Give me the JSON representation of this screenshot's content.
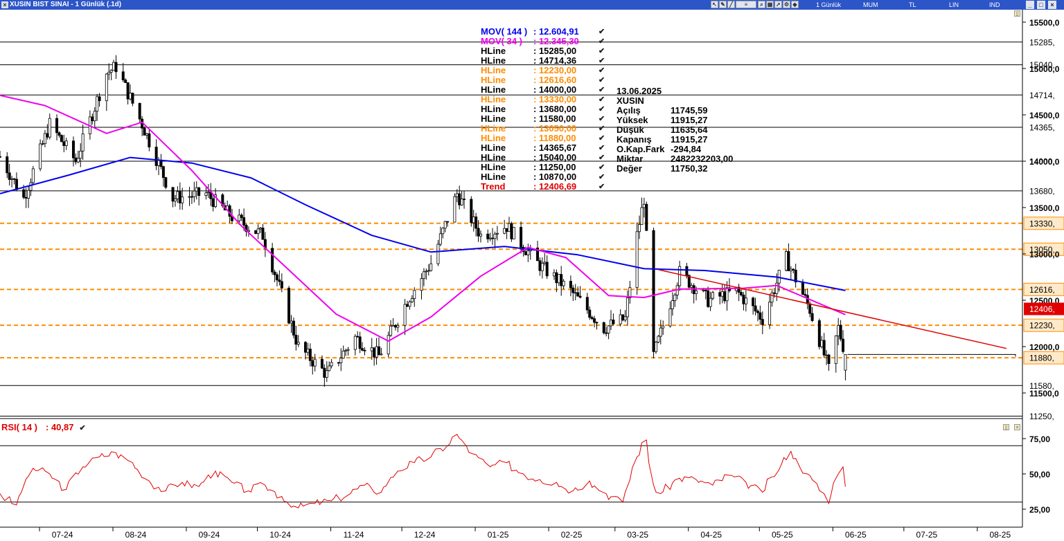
{
  "window": {
    "title": "XUSIN BIST SINAI - 1 Günlük (.1d)",
    "toolbar_menus": [
      "1 Günlük",
      "MUM",
      "TL",
      "LIN",
      "IND"
    ],
    "window_buttons": [
      "_",
      "□",
      "×"
    ],
    "icons": [
      "cursor-icon",
      "pen-icon",
      "line-icon",
      "text-icon",
      "zoom-icon",
      "grid-icon",
      "arrow-icon",
      "settings-icon"
    ]
  },
  "legend": {
    "rows": [
      {
        "name": "MOV( 144 )",
        "value": ": 12.604,91",
        "color": "#0000ee"
      },
      {
        "name": "MOV( 34 )",
        "value": ": 12.345,30",
        "color": "#ee00ee"
      },
      {
        "name": "HLine",
        "value": ": 15285,00",
        "color": "#000000"
      },
      {
        "name": "HLine",
        "value": ": 14714,36",
        "color": "#000000"
      },
      {
        "name": "HLine",
        "value": ": 12230,00",
        "color": "#ff8c00"
      },
      {
        "name": "HLine",
        "value": ": 12616,60",
        "color": "#ff8c00"
      },
      {
        "name": "HLine",
        "value": ": 14000,00",
        "color": "#000000"
      },
      {
        "name": "HLine",
        "value": ": 13330,00",
        "color": "#ff8c00"
      },
      {
        "name": "HLine",
        "value": ": 13680,00",
        "color": "#000000"
      },
      {
        "name": "HLine",
        "value": ": 11580,00",
        "color": "#000000"
      },
      {
        "name": "HLine",
        "value": ": 13050,00",
        "color": "#ff8c00"
      },
      {
        "name": "HLine",
        "value": ": 11880,00",
        "color": "#ff8c00"
      },
      {
        "name": "HLine",
        "value": ": 14365,67",
        "color": "#000000"
      },
      {
        "name": "HLine",
        "value": ": 15040,00",
        "color": "#000000"
      },
      {
        "name": "HLine",
        "value": ": 11250,00",
        "color": "#000000"
      },
      {
        "name": "HLine",
        "value": ": 10870,00",
        "color": "#000000"
      },
      {
        "name": "Trend",
        "value": ": 12406,69",
        "color": "#e00000"
      }
    ],
    "check_glyph": "✔"
  },
  "info_box": {
    "date": "13.06.2025",
    "symbol": "XUSIN",
    "rows": [
      {
        "key": "Açılış",
        "value": "11745,59"
      },
      {
        "key": "Yüksek",
        "value": "11915,27"
      },
      {
        "key": "Düşük",
        "value": "11635,64"
      },
      {
        "key": "Kapanış",
        "value": "11915,27"
      },
      {
        "key": "O.Kap.Fark",
        "value": "-294,84"
      },
      {
        "key": "Miktar",
        "value": "2482232203,00"
      },
      {
        "key": "Değer",
        "value": "11750,32"
      }
    ]
  },
  "rsi_panel": {
    "label": "RSI( 14 )",
    "value": ": 40,87",
    "check_glyph": "✔"
  },
  "chart_data": [
    {
      "type": "candlestick",
      "symbol": "XUSIN",
      "y_axis": {
        "min": 11300,
        "max": 15600,
        "ticks": [
          11500,
          12000,
          12500,
          13000,
          13500,
          14000,
          14500,
          15000,
          15500
        ],
        "tick_labels": [
          "11500,0",
          "12000,0",
          "12500,0",
          "13000,0",
          "13500,0",
          "14000,0",
          "14500,0",
          "15000,0",
          "15500,0"
        ]
      },
      "x_axis": {
        "labels": [
          "07-24",
          "08-24",
          "09-24",
          "10-24",
          "11-24",
          "12-24",
          "01-25",
          "02-25",
          "03-25",
          "04-25",
          "05-25",
          "06-25",
          "07-25",
          "08-25"
        ]
      },
      "ohlc_waypoints": [
        {
          "date": "2024-06-21",
          "close": 14050
        },
        {
          "date": "2024-07-01",
          "close": 13600
        },
        {
          "date": "2024-07-12",
          "close": 14400
        },
        {
          "date": "2024-07-23",
          "close": 14000
        },
        {
          "date": "2024-08-05",
          "close": 14950
        },
        {
          "date": "2024-08-09",
          "close": 15020
        },
        {
          "date": "2024-08-20",
          "close": 14400
        },
        {
          "date": "2024-09-02",
          "close": 13600
        },
        {
          "date": "2024-09-16",
          "close": 13650
        },
        {
          "date": "2024-09-27",
          "close": 13400
        },
        {
          "date": "2024-10-10",
          "close": 13200
        },
        {
          "date": "2024-10-25",
          "close": 12000
        },
        {
          "date": "2024-11-06",
          "close": 11700
        },
        {
          "date": "2024-11-18",
          "close": 12100
        },
        {
          "date": "2024-11-28",
          "close": 11900
        },
        {
          "date": "2024-12-10",
          "close": 12500
        },
        {
          "date": "2024-12-20",
          "close": 12900
        },
        {
          "date": "2024-12-31",
          "close": 13650
        },
        {
          "date": "2025-01-10",
          "close": 13200
        },
        {
          "date": "2025-01-21",
          "close": 13300
        },
        {
          "date": "2025-02-03",
          "close": 12900
        },
        {
          "date": "2025-02-17",
          "close": 12600
        },
        {
          "date": "2025-03-03",
          "close": 12200
        },
        {
          "date": "2025-03-12",
          "close": 12300
        },
        {
          "date": "2025-03-17",
          "close": 13200
        },
        {
          "date": "2025-03-20",
          "close": 13600
        },
        {
          "date": "2025-03-24",
          "close": 11900
        },
        {
          "date": "2025-04-04",
          "close": 12800
        },
        {
          "date": "2025-04-16",
          "close": 12500
        },
        {
          "date": "2025-04-28",
          "close": 12600
        },
        {
          "date": "2025-05-09",
          "close": 12300
        },
        {
          "date": "2025-05-19",
          "close": 12950
        },
        {
          "date": "2025-05-29",
          "close": 12400
        },
        {
          "date": "2025-06-06",
          "close": 11750
        },
        {
          "date": "2025-06-10",
          "close": 12200
        },
        {
          "date": "2025-06-13",
          "close": 11915
        }
      ],
      "last_bar": {
        "date": "2025-06-13",
        "open": 11745.59,
        "high": 11915.27,
        "low": 11635.64,
        "close": 11915.27
      },
      "series": [
        {
          "name": "MOV( 144 )",
          "color": "#0000ee",
          "last": 12604.91,
          "points": [
            {
              "date": "2024-06-21",
              "value": 13650
            },
            {
              "date": "2024-07-20",
              "value": 13850
            },
            {
              "date": "2024-08-15",
              "value": 14040
            },
            {
              "date": "2024-09-10",
              "value": 13980
            },
            {
              "date": "2024-10-05",
              "value": 13820
            },
            {
              "date": "2024-10-28",
              "value": 13530
            },
            {
              "date": "2024-11-25",
              "value": 13200
            },
            {
              "date": "2024-12-20",
              "value": 13020
            },
            {
              "date": "2025-01-20",
              "value": 13080
            },
            {
              "date": "2025-02-20",
              "value": 12990
            },
            {
              "date": "2025-03-20",
              "value": 12840
            },
            {
              "date": "2025-04-15",
              "value": 12820
            },
            {
              "date": "2025-05-15",
              "value": 12750
            },
            {
              "date": "2025-06-13",
              "value": 12605
            }
          ]
        },
        {
          "name": "MOV( 34 )",
          "color": "#ee00ee",
          "last": 12345.3,
          "points": [
            {
              "date": "2024-06-21",
              "value": 14710
            },
            {
              "date": "2024-07-10",
              "value": 14600
            },
            {
              "date": "2024-08-05",
              "value": 14300
            },
            {
              "date": "2024-08-20",
              "value": 14420
            },
            {
              "date": "2024-09-10",
              "value": 13900
            },
            {
              "date": "2024-10-01",
              "value": 13300
            },
            {
              "date": "2024-10-20",
              "value": 12850
            },
            {
              "date": "2024-11-10",
              "value": 12350
            },
            {
              "date": "2024-12-02",
              "value": 12060
            },
            {
              "date": "2024-12-20",
              "value": 12320
            },
            {
              "date": "2025-01-10",
              "value": 12760
            },
            {
              "date": "2025-01-30",
              "value": 13070
            },
            {
              "date": "2025-02-15",
              "value": 12960
            },
            {
              "date": "2025-03-05",
              "value": 12550
            },
            {
              "date": "2025-03-20",
              "value": 12530
            },
            {
              "date": "2025-04-04",
              "value": 12620
            },
            {
              "date": "2025-05-01",
              "value": 12630
            },
            {
              "date": "2025-05-15",
              "value": 12660
            },
            {
              "date": "2025-06-13",
              "value": 12345
            }
          ]
        }
      ],
      "hlines": [
        {
          "value": 15285,
          "label": "15285,",
          "style": "solid",
          "color": "#000000"
        },
        {
          "value": 15040,
          "label": "15040,",
          "style": "solid",
          "color": "#000000"
        },
        {
          "value": 14714.36,
          "label": "14714,",
          "style": "solid",
          "color": "#000000"
        },
        {
          "value": 14365.67,
          "label": "14365,",
          "style": "solid",
          "color": "#000000"
        },
        {
          "value": 14000,
          "label": "14000,",
          "style": "solid",
          "color": "#000000"
        },
        {
          "value": 13680,
          "label": "13680,",
          "style": "solid",
          "color": "#000000"
        },
        {
          "value": 13330,
          "label": "13330,",
          "style": "dashed",
          "color": "#ff8c00"
        },
        {
          "value": 13050,
          "label": "13050,",
          "style": "dashed",
          "color": "#ff8c00"
        },
        {
          "value": 12616.6,
          "label": "12616,",
          "style": "dashed",
          "color": "#ff8c00"
        },
        {
          "value": 12230,
          "label": "12230,",
          "style": "dashed",
          "color": "#ff8c00"
        },
        {
          "value": 11880,
          "label": "11880,",
          "style": "dashed",
          "color": "#ff8c00"
        },
        {
          "value": 11580,
          "label": "11580,",
          "style": "solid",
          "color": "#000000"
        },
        {
          "value": 11250,
          "label": "11250,",
          "style": "solid",
          "color": "#000000"
        }
      ],
      "trend": {
        "name": "Trend",
        "color": "#e00000",
        "label": "12406,",
        "value": 12406.69,
        "points": [
          {
            "date": "2025-03-26",
            "value": 12830
          },
          {
            "date": "2025-08-20",
            "value": 11980
          }
        ]
      },
      "last_price_marker": {
        "value": 11915.27
      }
    },
    {
      "type": "line",
      "name": "RSI( 14 )",
      "color": "#e00000",
      "last": 40.87,
      "y_axis": {
        "min": 17,
        "max": 82,
        "ticks": [
          25,
          50,
          75
        ],
        "tick_labels": [
          "25,00",
          "50,00",
          "75,00"
        ]
      },
      "bands": [
        70,
        30
      ],
      "points": [
        {
          "date": "2024-06-21",
          "value": 36
        },
        {
          "date": "2024-06-28",
          "value": 28
        },
        {
          "date": "2024-07-05",
          "value": 54
        },
        {
          "date": "2024-07-12",
          "value": 50
        },
        {
          "date": "2024-07-19",
          "value": 39
        },
        {
          "date": "2024-07-26",
          "value": 55
        },
        {
          "date": "2024-08-02",
          "value": 62
        },
        {
          "date": "2024-08-09",
          "value": 65
        },
        {
          "date": "2024-08-16",
          "value": 58
        },
        {
          "date": "2024-08-23",
          "value": 45
        },
        {
          "date": "2024-08-30",
          "value": 38
        },
        {
          "date": "2024-09-06",
          "value": 44
        },
        {
          "date": "2024-09-13",
          "value": 41
        },
        {
          "date": "2024-09-20",
          "value": 52
        },
        {
          "date": "2024-09-27",
          "value": 44
        },
        {
          "date": "2024-10-04",
          "value": 38
        },
        {
          "date": "2024-10-11",
          "value": 42
        },
        {
          "date": "2024-10-18",
          "value": 34
        },
        {
          "date": "2024-10-25",
          "value": 26
        },
        {
          "date": "2024-11-01",
          "value": 29
        },
        {
          "date": "2024-11-08",
          "value": 31
        },
        {
          "date": "2024-11-15",
          "value": 35
        },
        {
          "date": "2024-11-22",
          "value": 42
        },
        {
          "date": "2024-11-29",
          "value": 37
        },
        {
          "date": "2024-12-06",
          "value": 52
        },
        {
          "date": "2024-12-13",
          "value": 58
        },
        {
          "date": "2024-12-20",
          "value": 62
        },
        {
          "date": "2024-12-27",
          "value": 70
        },
        {
          "date": "2024-12-31",
          "value": 78
        },
        {
          "date": "2025-01-07",
          "value": 64
        },
        {
          "date": "2025-01-14",
          "value": 55
        },
        {
          "date": "2025-01-21",
          "value": 58
        },
        {
          "date": "2025-01-28",
          "value": 50
        },
        {
          "date": "2025-02-04",
          "value": 46
        },
        {
          "date": "2025-02-11",
          "value": 44
        },
        {
          "date": "2025-02-18",
          "value": 38
        },
        {
          "date": "2025-02-25",
          "value": 45
        },
        {
          "date": "2025-03-04",
          "value": 36
        },
        {
          "date": "2025-03-11",
          "value": 30
        },
        {
          "date": "2025-03-17",
          "value": 62
        },
        {
          "date": "2025-03-21",
          "value": 74
        },
        {
          "date": "2025-03-24",
          "value": 42
        },
        {
          "date": "2025-03-27",
          "value": 36
        },
        {
          "date": "2025-04-04",
          "value": 47
        },
        {
          "date": "2025-04-11",
          "value": 46
        },
        {
          "date": "2025-04-18",
          "value": 42
        },
        {
          "date": "2025-04-25",
          "value": 49
        },
        {
          "date": "2025-05-02",
          "value": 44
        },
        {
          "date": "2025-05-09",
          "value": 37
        },
        {
          "date": "2025-05-16",
          "value": 53
        },
        {
          "date": "2025-05-21",
          "value": 66
        },
        {
          "date": "2025-05-28",
          "value": 50
        },
        {
          "date": "2025-06-04",
          "value": 36
        },
        {
          "date": "2025-06-06",
          "value": 29
        },
        {
          "date": "2025-06-10",
          "value": 50
        },
        {
          "date": "2025-06-12",
          "value": 55
        },
        {
          "date": "2025-06-13",
          "value": 40.87
        }
      ]
    }
  ]
}
